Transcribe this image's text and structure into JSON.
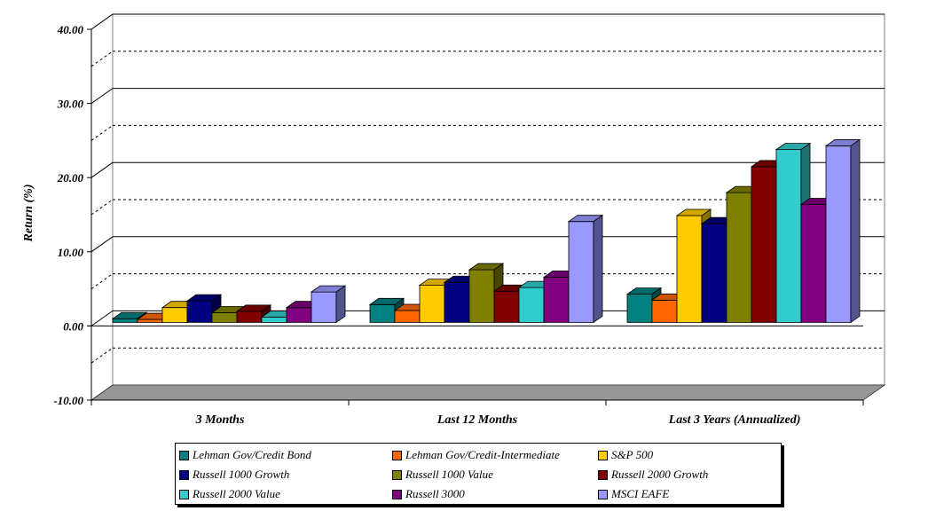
{
  "chart_data": {
    "type": "bar",
    "style": "3d-clustered-column",
    "ylabel": "Return (%)",
    "ylim": [
      -10,
      40
    ],
    "yticks": [
      "40.00",
      "30.00",
      "20.00",
      "10.00",
      "0.00",
      "-10.00"
    ],
    "ytick_values": [
      40,
      30,
      20,
      10,
      0,
      -10
    ],
    "grid": "major solid, minor dashed",
    "legend_position": "bottom",
    "categories": [
      "3 Months",
      "Last 12 Months",
      "Last 3 Years (Annualized)"
    ],
    "series": [
      {
        "name": "Lehman Gov/Credit Bond",
        "color": "#008080",
        "values": [
          0.5,
          2.4,
          3.8
        ]
      },
      {
        "name": "Lehman Gov/Credit-Intermediate",
        "color": "#FF6600",
        "values": [
          0.4,
          1.6,
          3.0
        ]
      },
      {
        "name": "S&P 500",
        "color": "#FFCC00",
        "values": [
          2.0,
          5.0,
          14.4
        ]
      },
      {
        "name": "Russell 1000 Growth",
        "color": "#000080",
        "values": [
          2.9,
          5.4,
          13.3
        ]
      },
      {
        "name": "Russell 1000 Value",
        "color": "#808000",
        "values": [
          1.3,
          7.1,
          17.5
        ]
      },
      {
        "name": "Russell 2000 Growth",
        "color": "#800000",
        "values": [
          1.5,
          4.2,
          21.0
        ]
      },
      {
        "name": "Russell 2000 Value",
        "color": "#33CCCC",
        "values": [
          0.7,
          4.7,
          23.3
        ]
      },
      {
        "name": "Russell 3000",
        "color": "#800080",
        "values": [
          2.0,
          6.1,
          15.9
        ]
      },
      {
        "name": "MSCI EAFE",
        "color": "#9999FF",
        "values": [
          4.1,
          13.6,
          23.8
        ]
      }
    ]
  }
}
